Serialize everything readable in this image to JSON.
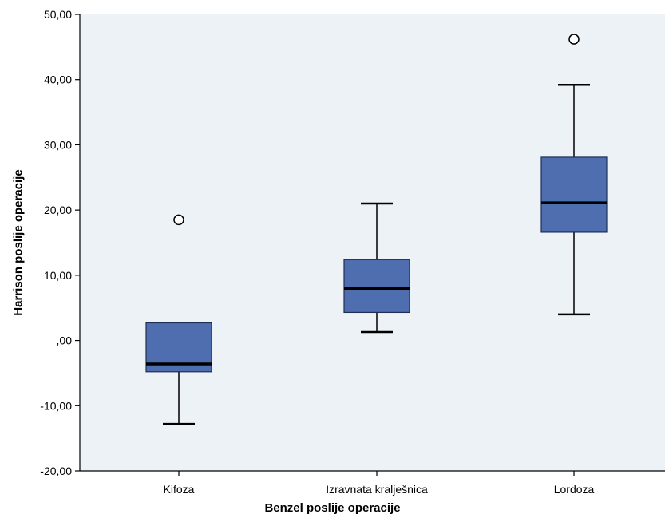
{
  "chart_data": {
    "type": "boxplot",
    "xlabel": "Benzel poslije operacije",
    "ylabel": "Harrison poslije operacije",
    "ylim": [
      -20,
      50
    ],
    "yticks": [
      -20,
      -10,
      0,
      10,
      20,
      30,
      40,
      50
    ],
    "ytick_labels": [
      "-20,00",
      "-10,00",
      ",00",
      "10,00",
      "20,00",
      "30,00",
      "40,00",
      "50,00"
    ],
    "grid": false,
    "categories": [
      "Kifoza",
      "Izravnata kralješnica",
      "Lordoza"
    ],
    "boxes": [
      {
        "category": "Kifoza",
        "whisker_low": -12.8,
        "q1": -4.8,
        "median": -3.6,
        "q3": 2.7,
        "whisker_high": 2.7,
        "outliers": [
          18.5
        ]
      },
      {
        "category": "Izravnata kralješnica",
        "whisker_low": 1.3,
        "q1": 4.3,
        "median": 8.0,
        "q3": 12.4,
        "whisker_high": 21.0,
        "outliers": []
      },
      {
        "category": "Lordoza",
        "whisker_low": 4.0,
        "q1": 16.6,
        "median": 21.1,
        "q3": 28.1,
        "whisker_high": 39.2,
        "outliers": [
          46.2
        ]
      }
    ],
    "colors": {
      "plot_background": "#EDF2F7",
      "box_fill": "#4E6EAF",
      "box_stroke": "#1F2E55",
      "median": "#000000",
      "outlier_fill": "#FFFFFF"
    }
  }
}
